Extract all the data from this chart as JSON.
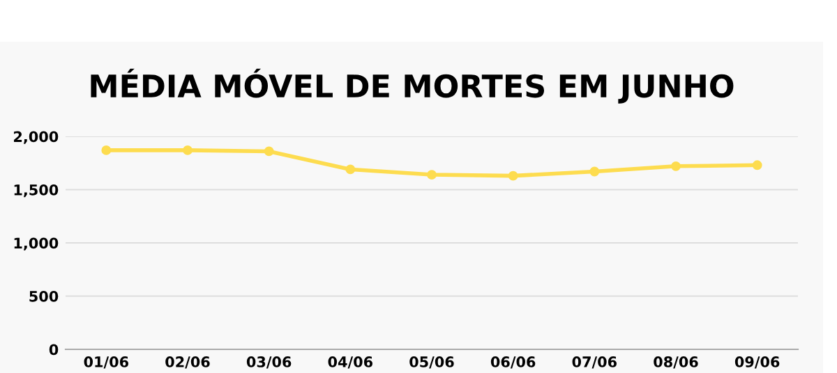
{
  "chart_data": {
    "type": "line",
    "title": "MÉDIA MÓVEL DE MORTES EM JUNHO",
    "categories": [
      "01/06",
      "02/06",
      "03/06",
      "04/06",
      "05/06",
      "06/06",
      "07/06",
      "08/06",
      "09/06"
    ],
    "series": [
      {
        "color": "#fddc4f",
        "values": [
          1870,
          1870,
          1860,
          1690,
          1640,
          1630,
          1670,
          1720,
          1730
        ]
      }
    ],
    "ylim": [
      0,
      2000
    ],
    "yticks": [
      0,
      {
        "value": 500,
        "label": "500"
      },
      {
        "value": 1000,
        "label": "1,000"
      },
      {
        "value": 1500,
        "label": "1,500"
      },
      {
        "value": 2000,
        "label": "2,000"
      }
    ],
    "grid": "y",
    "marker": "circle",
    "line_style": "solid"
  }
}
